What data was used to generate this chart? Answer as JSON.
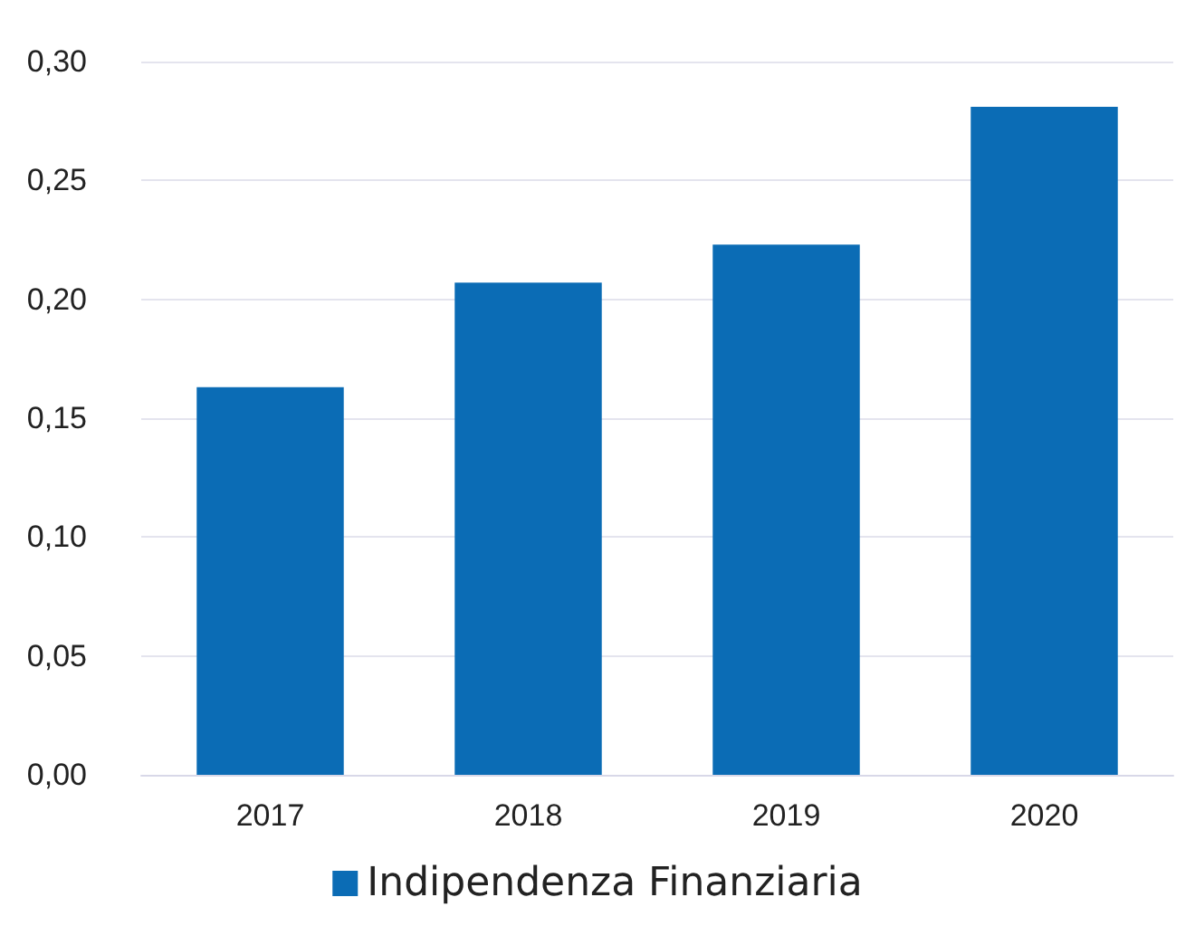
{
  "chart_data": {
    "type": "bar",
    "categories": [
      "2017",
      "2018",
      "2019",
      "2020"
    ],
    "series": [
      {
        "name": "Indipendenza Finanziaria",
        "color": "#0b6cb5",
        "values": [
          0.163,
          0.207,
          0.223,
          0.281
        ]
      }
    ],
    "ylim": [
      0,
      0.3
    ],
    "yticks": [
      {
        "value": 0,
        "label": "0,00"
      },
      {
        "value": 0.05,
        "label": "0,05"
      },
      {
        "value": 0.1,
        "label": "0,10"
      },
      {
        "value": 0.15,
        "label": "0,15"
      },
      {
        "value": 0.2,
        "label": "0,20"
      },
      {
        "value": 0.25,
        "label": "0,25"
      },
      {
        "value": 0.3,
        "label": "0,30"
      }
    ],
    "grid": "y",
    "legend": "bottom"
  }
}
